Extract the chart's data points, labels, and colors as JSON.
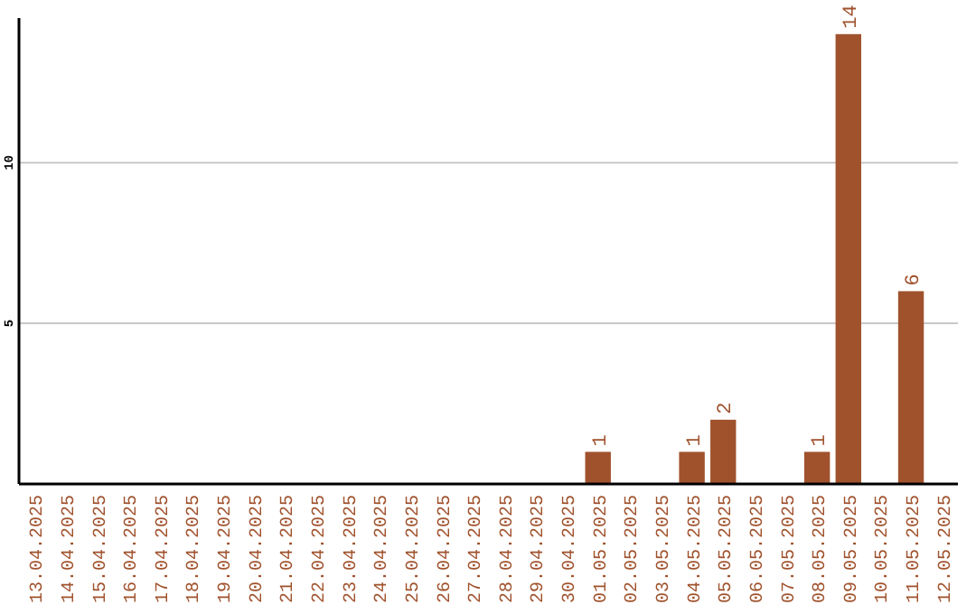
{
  "chart_data": {
    "type": "bar",
    "categories": [
      "13.04.2025",
      "14.04.2025",
      "15.04.2025",
      "16.04.2025",
      "17.04.2025",
      "18.04.2025",
      "19.04.2025",
      "20.04.2025",
      "21.04.2025",
      "22.04.2025",
      "23.04.2025",
      "24.04.2025",
      "25.04.2025",
      "26.04.2025",
      "27.04.2025",
      "28.04.2025",
      "29.04.2025",
      "30.04.2025",
      "01.05.2025",
      "02.05.2025",
      "03.05.2025",
      "04.05.2025",
      "05.05.2025",
      "06.05.2025",
      "07.05.2025",
      "08.05.2025",
      "09.05.2025",
      "10.05.2025",
      "11.05.2025",
      "12.05.2025"
    ],
    "values": [
      0,
      0,
      0,
      0,
      0,
      0,
      0,
      0,
      0,
      0,
      0,
      0,
      0,
      0,
      0,
      0,
      0,
      0,
      1,
      0,
      0,
      1,
      2,
      0,
      0,
      1,
      14,
      0,
      6,
      0
    ],
    "value_labels": [
      null,
      null,
      null,
      null,
      null,
      null,
      null,
      null,
      null,
      null,
      null,
      null,
      null,
      null,
      null,
      null,
      null,
      null,
      "1",
      null,
      null,
      "1",
      "2",
      null,
      null,
      "1",
      "14",
      null,
      "6",
      null
    ],
    "color": "#a0522d",
    "ylim": [
      0,
      14.5
    ],
    "yticks": [
      5,
      10
    ],
    "grid": "y"
  }
}
